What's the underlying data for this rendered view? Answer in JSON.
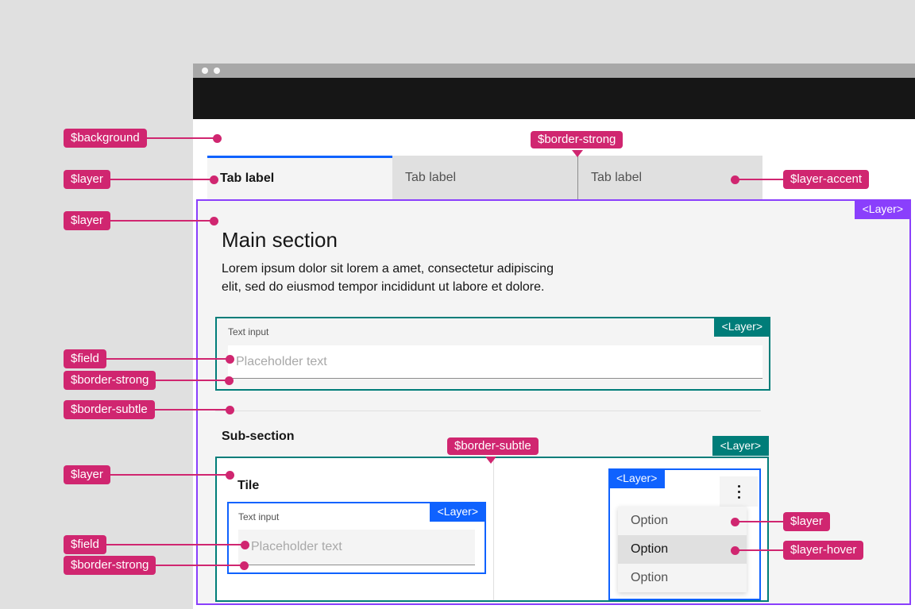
{
  "badges": {
    "label": "<Layer>"
  },
  "window": {
    "tabs": [
      {
        "label": "Tab label",
        "state": "selected"
      },
      {
        "label": "Tab label",
        "state": "rest"
      },
      {
        "label": "Tab label",
        "state": "rest"
      }
    ],
    "main": {
      "heading": "Main section",
      "body_line1": "Lorem ipsum dolor sit lorem a amet, consectetur adipiscing",
      "body_line2": "elit, sed do eiusmod tempor incididunt ut labore et dolore.",
      "text_input": {
        "label": "Text input",
        "placeholder": "Placeholder text"
      },
      "subsection_heading": "Sub-section",
      "tile": {
        "title": "Tile",
        "text_input": {
          "label": "Text input",
          "placeholder": "Placeholder text"
        }
      },
      "menu": {
        "options": [
          {
            "label": "Option",
            "state": "rest"
          },
          {
            "label": "Option",
            "state": "hover"
          },
          {
            "label": "Option",
            "state": "rest"
          }
        ]
      }
    }
  },
  "annotations": {
    "background": "$background",
    "layer_tab": "$layer",
    "layer_main": "$layer",
    "border_strong_tabs": "$border-strong",
    "layer_accent": "$layer-accent",
    "field_main": "$field",
    "border_strong_main": "$border-strong",
    "border_subtle_main": "$border-subtle",
    "border_subtle_tile": "$border-subtle",
    "layer_tile": "$layer",
    "field_tile": "$field",
    "border_strong_tile": "$border-strong",
    "layer_option": "$layer",
    "layer_hover_option": "$layer-hover"
  },
  "colors": {
    "annotation_magenta": "#d02670",
    "layer_badge_purple": "#8a3ffc",
    "layer_badge_teal": "#007d79",
    "layer_badge_blue": "#0f62fe",
    "tab_accent_blue": "#0f62fe",
    "page_background": "#e0e0e0",
    "layer_fill": "#f4f4f4",
    "layer_hover_fill": "#e0e0e0",
    "border_strong": "#8d8d8d",
    "border_subtle": "#e0e0e0"
  }
}
